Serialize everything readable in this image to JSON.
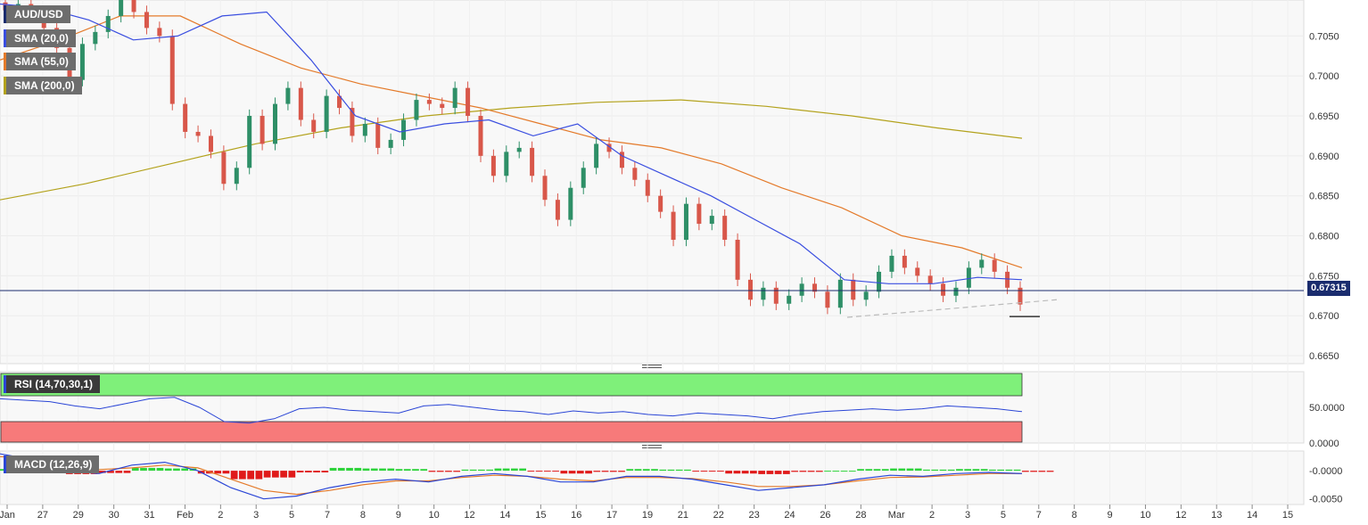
{
  "instrument": "AUD/USD",
  "indicators": {
    "sma20": {
      "label": "SMA (20,0)",
      "color": "#3a4ee0"
    },
    "sma55": {
      "label": "SMA (55,0)",
      "color": "#e47a2a"
    },
    "sma200": {
      "label": "SMA (200,0)",
      "color": "#b3a21c"
    },
    "rsi": {
      "label": "RSI (14,70,30,1)",
      "color": "#2a45d6",
      "overbought_color": "#7ff07a",
      "oversold_color": "#f77a7a"
    },
    "macd": {
      "label": "MACD (12,26,9)",
      "macd_color": "#2a45d6",
      "signal_color": "#e47a2a",
      "hist_pos_color": "#2ed33b",
      "hist_neg_color": "#e01a1a"
    }
  },
  "current_price": "0.67315",
  "colors": {
    "bull": "#2e8f67",
    "bear": "#d8574a",
    "grid": "#ececec",
    "price_line": "#1a2c6e"
  },
  "chart_data": [
    {
      "type": "candlestick",
      "title": "AUD/USD",
      "y_axis_ticks": [
        "0.7050",
        "0.7000",
        "0.6950",
        "0.6900",
        "0.6850",
        "0.6800",
        "0.6750",
        "0.6700",
        "0.6650"
      ],
      "ylim": [
        0.664,
        0.7095
      ],
      "x_axis_ticks": [
        "Jan",
        "27",
        "29",
        "30",
        "31",
        "Feb",
        "2",
        "3",
        "5",
        "7",
        "8",
        "9",
        "10",
        "12",
        "14",
        "15",
        "16",
        "17",
        "19",
        "21",
        "22",
        "23",
        "24",
        "26",
        "28",
        "Mar",
        "2",
        "3",
        "5",
        "7",
        "8",
        "9",
        "10",
        "12",
        "13",
        "14",
        "15"
      ],
      "current_price": 0.67315,
      "series": [
        {
          "name": "SMA (20,0)",
          "values": [
            0.709,
            0.7085,
            0.707,
            0.7045,
            0.705,
            0.7075,
            0.708,
            0.702,
            0.695,
            0.693,
            0.694,
            0.6945,
            0.6925,
            0.694,
            0.69,
            0.6875,
            0.685,
            0.682,
            0.679,
            0.6745,
            0.674,
            0.674,
            0.6748,
            0.6745
          ]
        },
        {
          "name": "SMA (55,0)",
          "values": [
            0.702,
            0.7045,
            0.7075,
            0.7075,
            0.704,
            0.701,
            0.699,
            0.6975,
            0.696,
            0.694,
            0.692,
            0.691,
            0.689,
            0.686,
            0.6835,
            0.68,
            0.6785,
            0.676
          ]
        },
        {
          "name": "SMA (200,0)",
          "values": [
            0.6845,
            0.6865,
            0.689,
            0.6915,
            0.6935,
            0.695,
            0.696,
            0.6967,
            0.697,
            0.6962,
            0.695,
            0.6935,
            0.6922
          ]
        }
      ],
      "trendline": {
        "from": 0.6698,
        "to": 0.672
      },
      "candles": [
        [
          0.7092,
          0.7082
        ],
        [
          0.7082,
          0.709
        ],
        [
          0.709,
          0.7075
        ],
        [
          0.7075,
          0.706
        ],
        [
          0.706,
          0.7035
        ],
        [
          0.7035,
          0.6995
        ],
        [
          0.6995,
          0.704
        ],
        [
          0.704,
          0.7055
        ],
        [
          0.7055,
          0.7075
        ],
        [
          0.7075,
          0.7095
        ],
        [
          0.7095,
          0.708
        ],
        [
          0.708,
          0.706
        ],
        [
          0.706,
          0.705
        ],
        [
          0.705,
          0.6965
        ],
        [
          0.6965,
          0.693
        ],
        [
          0.693,
          0.6925
        ],
        [
          0.6925,
          0.6905
        ],
        [
          0.6905,
          0.6865
        ],
        [
          0.6865,
          0.6885
        ],
        [
          0.6885,
          0.695
        ],
        [
          0.695,
          0.6915
        ],
        [
          0.6915,
          0.6965
        ],
        [
          0.6965,
          0.6985
        ],
        [
          0.6985,
          0.6945
        ],
        [
          0.6945,
          0.693
        ],
        [
          0.693,
          0.6975
        ],
        [
          0.6975,
          0.696
        ],
        [
          0.696,
          0.6925
        ],
        [
          0.6925,
          0.694
        ],
        [
          0.694,
          0.691
        ],
        [
          0.691,
          0.692
        ],
        [
          0.692,
          0.6945
        ],
        [
          0.6945,
          0.697
        ],
        [
          0.697,
          0.6965
        ],
        [
          0.6965,
          0.696
        ],
        [
          0.696,
          0.6985
        ],
        [
          0.6985,
          0.695
        ],
        [
          0.695,
          0.69
        ],
        [
          0.69,
          0.6875
        ],
        [
          0.6875,
          0.6905
        ],
        [
          0.6905,
          0.691
        ],
        [
          0.691,
          0.6875
        ],
        [
          0.6875,
          0.6845
        ],
        [
          0.6845,
          0.682
        ],
        [
          0.682,
          0.686
        ],
        [
          0.686,
          0.6885
        ],
        [
          0.6885,
          0.6915
        ],
        [
          0.6915,
          0.6905
        ],
        [
          0.6905,
          0.6885
        ],
        [
          0.6885,
          0.687
        ],
        [
          0.687,
          0.685
        ],
        [
          0.685,
          0.683
        ],
        [
          0.683,
          0.6795
        ],
        [
          0.6795,
          0.684
        ],
        [
          0.684,
          0.6815
        ],
        [
          0.6815,
          0.6825
        ],
        [
          0.6825,
          0.6795
        ],
        [
          0.6795,
          0.6745
        ],
        [
          0.6745,
          0.672
        ],
        [
          0.672,
          0.6735
        ],
        [
          0.6735,
          0.6715
        ],
        [
          0.6715,
          0.6725
        ],
        [
          0.6725,
          0.674
        ],
        [
          0.674,
          0.673
        ],
        [
          0.673,
          0.671
        ],
        [
          0.671,
          0.6745
        ],
        [
          0.6745,
          0.672
        ],
        [
          0.672,
          0.673
        ],
        [
          0.673,
          0.6755
        ],
        [
          0.6755,
          0.6775
        ],
        [
          0.6775,
          0.676
        ],
        [
          0.676,
          0.675
        ],
        [
          0.675,
          0.674
        ],
        [
          0.674,
          0.6725
        ],
        [
          0.6725,
          0.6735
        ],
        [
          0.6735,
          0.676
        ],
        [
          0.676,
          0.677
        ],
        [
          0.677,
          0.6755
        ],
        [
          0.6755,
          0.6735
        ],
        [
          0.6735,
          0.6714
        ]
      ]
    },
    {
      "type": "line",
      "title": "RSI (14,70,30,1)",
      "y_axis_ticks": [
        "50.0000",
        "0.0000"
      ],
      "ylim": [
        0,
        100
      ],
      "overbought": 70,
      "oversold": 30,
      "series": [
        {
          "name": "RSI (14,70,30,1)",
          "values": [
            62,
            60,
            58,
            52,
            48,
            55,
            62,
            64,
            50,
            30,
            28,
            34,
            48,
            50,
            46,
            44,
            42,
            52,
            54,
            50,
            46,
            44,
            40,
            45,
            42,
            44,
            40,
            38,
            42,
            40,
            38,
            34,
            40,
            44,
            46,
            48,
            46,
            48,
            52,
            50,
            48,
            44
          ]
        }
      ]
    },
    {
      "type": "bar",
      "title": "MACD (12,26,9)",
      "y_axis_ticks": [
        "-0.0000",
        "-0.0050"
      ],
      "ylim": [
        -0.006,
        0.0035
      ],
      "series": [
        {
          "name": "MACD",
          "values": [
            0.003,
            0.002,
            0.0,
            -0.0005,
            0.001,
            0.0015,
            0.0,
            -0.003,
            -0.005,
            -0.0045,
            -0.003,
            -0.002,
            -0.0015,
            -0.002,
            -0.001,
            -0.0005,
            -0.001,
            -0.002,
            -0.002,
            -0.001,
            -0.001,
            -0.0015,
            -0.0025,
            -0.0035,
            -0.003,
            -0.0025,
            -0.0015,
            -0.0008,
            -0.001,
            -0.0005,
            -0.0003,
            -0.0005
          ]
        },
        {
          "name": "Signal",
          "values": [
            0.0025,
            0.0022,
            0.001,
            0.0002,
            0.0005,
            0.001,
            0.0005,
            -0.0015,
            -0.0035,
            -0.0042,
            -0.0035,
            -0.0025,
            -0.0018,
            -0.0018,
            -0.0012,
            -0.0008,
            -0.001,
            -0.0015,
            -0.0018,
            -0.0012,
            -0.0012,
            -0.0014,
            -0.002,
            -0.0028,
            -0.0028,
            -0.0025,
            -0.0018,
            -0.0012,
            -0.0011,
            -0.0008,
            -0.0005,
            -0.0005
          ]
        }
      ],
      "histogram": [
        0.0003,
        0.0,
        -0.0006,
        -0.0004,
        0.0005,
        0.0004,
        -0.0005,
        -0.0015,
        -0.0012,
        -0.0003,
        0.0005,
        0.0004,
        0.0003,
        -0.0002,
        0.0002,
        0.0004,
        -0.0001,
        -0.0005,
        -0.0002,
        0.0003,
        0.0002,
        -0.0001,
        -0.0005,
        -0.0006,
        -0.0002,
        0.0,
        0.0003,
        0.0004,
        0.0002,
        0.0003,
        0.0002,
        -0.0002
      ]
    }
  ]
}
